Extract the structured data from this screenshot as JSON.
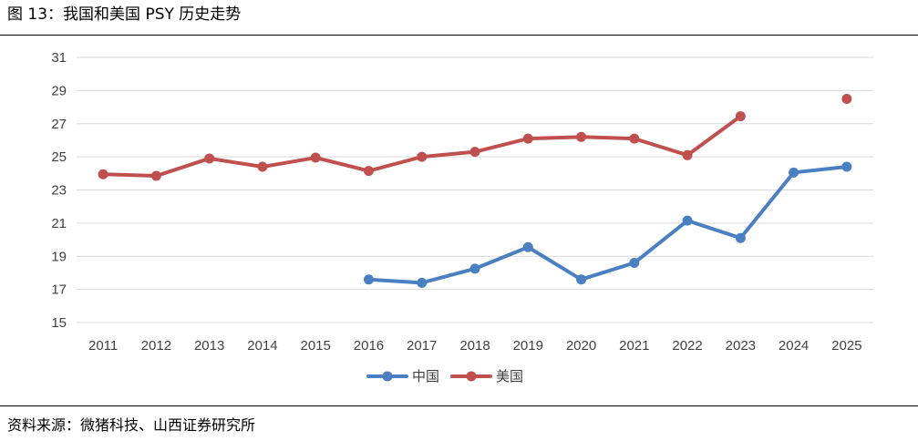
{
  "header": {
    "title": "图 13：我国和美国 PSY 历史走势"
  },
  "footer": {
    "source": "资料来源：微猪科技、山西证券研究所"
  },
  "colors": {
    "china": "#4a7fc1",
    "usa": "#c0504d",
    "grid": "#d9d9d9"
  },
  "chart_data": {
    "type": "line",
    "title": "",
    "xlabel": "",
    "ylabel": "",
    "categories": [
      "2011",
      "2012",
      "2013",
      "2014",
      "2015",
      "2016",
      "2017",
      "2018",
      "2019",
      "2020",
      "2021",
      "2022",
      "2023",
      "2024",
      "2025"
    ],
    "ylim": [
      15,
      31
    ],
    "yticks": [
      15,
      17,
      19,
      21,
      23,
      25,
      27,
      29,
      31
    ],
    "grid": true,
    "legend_position": "bottom",
    "series": [
      {
        "name": "中国",
        "color": "#4a7fc1",
        "values": [
          null,
          null,
          null,
          null,
          null,
          17.6,
          17.4,
          18.25,
          19.55,
          17.6,
          18.6,
          21.15,
          20.1,
          24.05,
          24.4
        ]
      },
      {
        "name": "美国",
        "color": "#c0504d",
        "values": [
          23.95,
          23.85,
          24.9,
          24.4,
          24.95,
          24.15,
          25.0,
          25.3,
          26.1,
          26.2,
          26.1,
          25.1,
          27.45,
          null,
          28.5
        ]
      }
    ]
  }
}
